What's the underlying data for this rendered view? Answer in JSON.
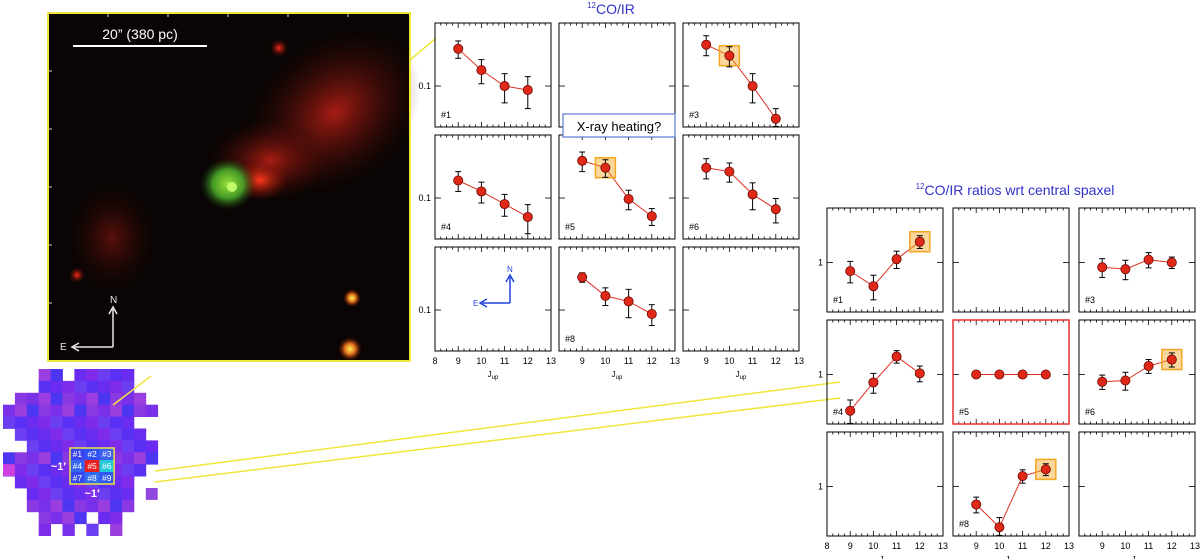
{
  "colors": {
    "marker": "#e02818",
    "line": "#e03020",
    "highlight": "#f5a623",
    "title": "#3232c8",
    "yellow": "#f0e63c",
    "arrow": "#2040e0",
    "ref_frame": "#e83030"
  },
  "image_panel": {
    "scalebar_label": "20” (380 pc)",
    "compass_n": "N",
    "compass_e": "E"
  },
  "map": {
    "labels": [
      "#1",
      "#2",
      "#3",
      "#4",
      "#5",
      "#6",
      "#7",
      "#8",
      "#9"
    ],
    "size_x": "~1′",
    "size_y": "~1′"
  },
  "annotation": {
    "text": "X-ray heating?",
    "compass_n": "N",
    "compass_e": "E"
  },
  "chart_data": [
    {
      "type": "scatter",
      "title": "12CO/IR",
      "title_sup": "12",
      "title_rest": "CO/IR",
      "xlabel": "J",
      "xlabel_sub": "up",
      "xlim": [
        8,
        13
      ],
      "xticks": [
        "8",
        "9",
        "10",
        "11",
        "12",
        "13"
      ],
      "yscale": "log",
      "ylim": [
        0.042,
        0.38
      ],
      "ytick_value": 0.1,
      "ytick_label": "0.1",
      "panels": [
        {
          "label": "#1",
          "x": [
            9,
            10,
            11,
            12
          ],
          "y": [
            0.22,
            0.14,
            0.1,
            0.092
          ],
          "err": [
            0.04,
            0.035,
            0.03,
            0.03
          ],
          "highlight": null
        },
        {
          "label": "",
          "x": [],
          "y": [],
          "err": [],
          "highlight": null
        },
        {
          "label": "#3",
          "x": [
            9,
            10,
            11,
            12
          ],
          "y": [
            0.24,
            0.19,
            0.1,
            0.05
          ],
          "err": [
            0.05,
            0.04,
            0.03,
            0.012
          ],
          "highlight": 1
        },
        {
          "label": "#4",
          "x": [
            9,
            10,
            11,
            12
          ],
          "y": [
            0.145,
            0.115,
            0.088,
            0.067
          ],
          "err": [
            0.03,
            0.025,
            0.02,
            0.02
          ],
          "highlight": null
        },
        {
          "label": "#5",
          "x": [
            9,
            10,
            11,
            12
          ],
          "y": [
            0.22,
            0.19,
            0.098,
            0.068
          ],
          "err": [
            0.045,
            0.035,
            0.02,
            0.012
          ],
          "highlight": 1
        },
        {
          "label": "#6",
          "x": [
            9,
            10,
            11,
            12
          ],
          "y": [
            0.19,
            0.175,
            0.108,
            0.079
          ],
          "err": [
            0.04,
            0.035,
            0.03,
            0.02
          ],
          "highlight": null
        },
        {
          "label": "",
          "x": [],
          "y": [],
          "err": [],
          "highlight": null,
          "compass": true
        },
        {
          "label": "#8",
          "x": [
            9,
            10,
            11,
            12
          ],
          "y": [
            0.2,
            0.135,
            0.12,
            0.092
          ],
          "err": [
            0.02,
            0.025,
            0.035,
            0.02
          ],
          "highlight": null
        },
        {
          "label": "",
          "x": [],
          "y": [],
          "err": [],
          "highlight": null
        }
      ]
    },
    {
      "type": "scatter",
      "title": "12CO/IR ratios wrt central spaxel",
      "title_sup": "12",
      "title_rest": "CO/IR ratios wrt central spaxel",
      "xlabel": "J",
      "xlabel_sub": "up",
      "xlim": [
        8,
        13
      ],
      "xticks": [
        "8",
        "9",
        "10",
        "11",
        "12",
        "13"
      ],
      "yscale": "log",
      "ylim": [
        0.42,
        2.6
      ],
      "ytick_value": 1,
      "ytick_label": "1",
      "panels": [
        {
          "label": "#1",
          "x": [
            9,
            10,
            11,
            12
          ],
          "y": [
            0.86,
            0.66,
            1.06,
            1.44
          ],
          "err": [
            0.16,
            0.14,
            0.16,
            0.16
          ],
          "highlight": 3
        },
        {
          "label": "",
          "x": [],
          "y": [],
          "err": [],
          "highlight": null
        },
        {
          "label": "#3",
          "x": [
            9,
            10,
            11,
            12
          ],
          "y": [
            0.92,
            0.89,
            1.05,
            1.0
          ],
          "err": [
            0.15,
            0.15,
            0.14,
            0.1
          ],
          "highlight": null
        },
        {
          "label": "#4",
          "x": [
            9,
            10,
            11,
            12
          ],
          "y": [
            0.53,
            0.87,
            1.37,
            1.02
          ],
          "err": [
            0.11,
            0.15,
            0.15,
            0.14
          ],
          "highlight": null
        },
        {
          "label": "#5",
          "x": [
            9,
            10,
            11,
            12
          ],
          "y": [
            1,
            1,
            1,
            1
          ],
          "err": [
            0,
            0,
            0,
            0
          ],
          "highlight": null,
          "reference": true
        },
        {
          "label": "#6",
          "x": [
            9,
            10,
            11,
            12
          ],
          "y": [
            0.88,
            0.9,
            1.16,
            1.3
          ],
          "err": [
            0.11,
            0.14,
            0.14,
            0.16
          ],
          "highlight": 3
        },
        {
          "label": "",
          "x": [],
          "y": [],
          "err": [],
          "highlight": null
        },
        {
          "label": "#8",
          "x": [
            9,
            10,
            11,
            12
          ],
          "y": [
            0.73,
            0.49,
            1.2,
            1.35
          ],
          "err": [
            0.1,
            0.09,
            0.14,
            0.14
          ],
          "highlight": 3
        },
        {
          "label": "",
          "x": [],
          "y": [],
          "err": [],
          "highlight": null
        }
      ]
    }
  ]
}
